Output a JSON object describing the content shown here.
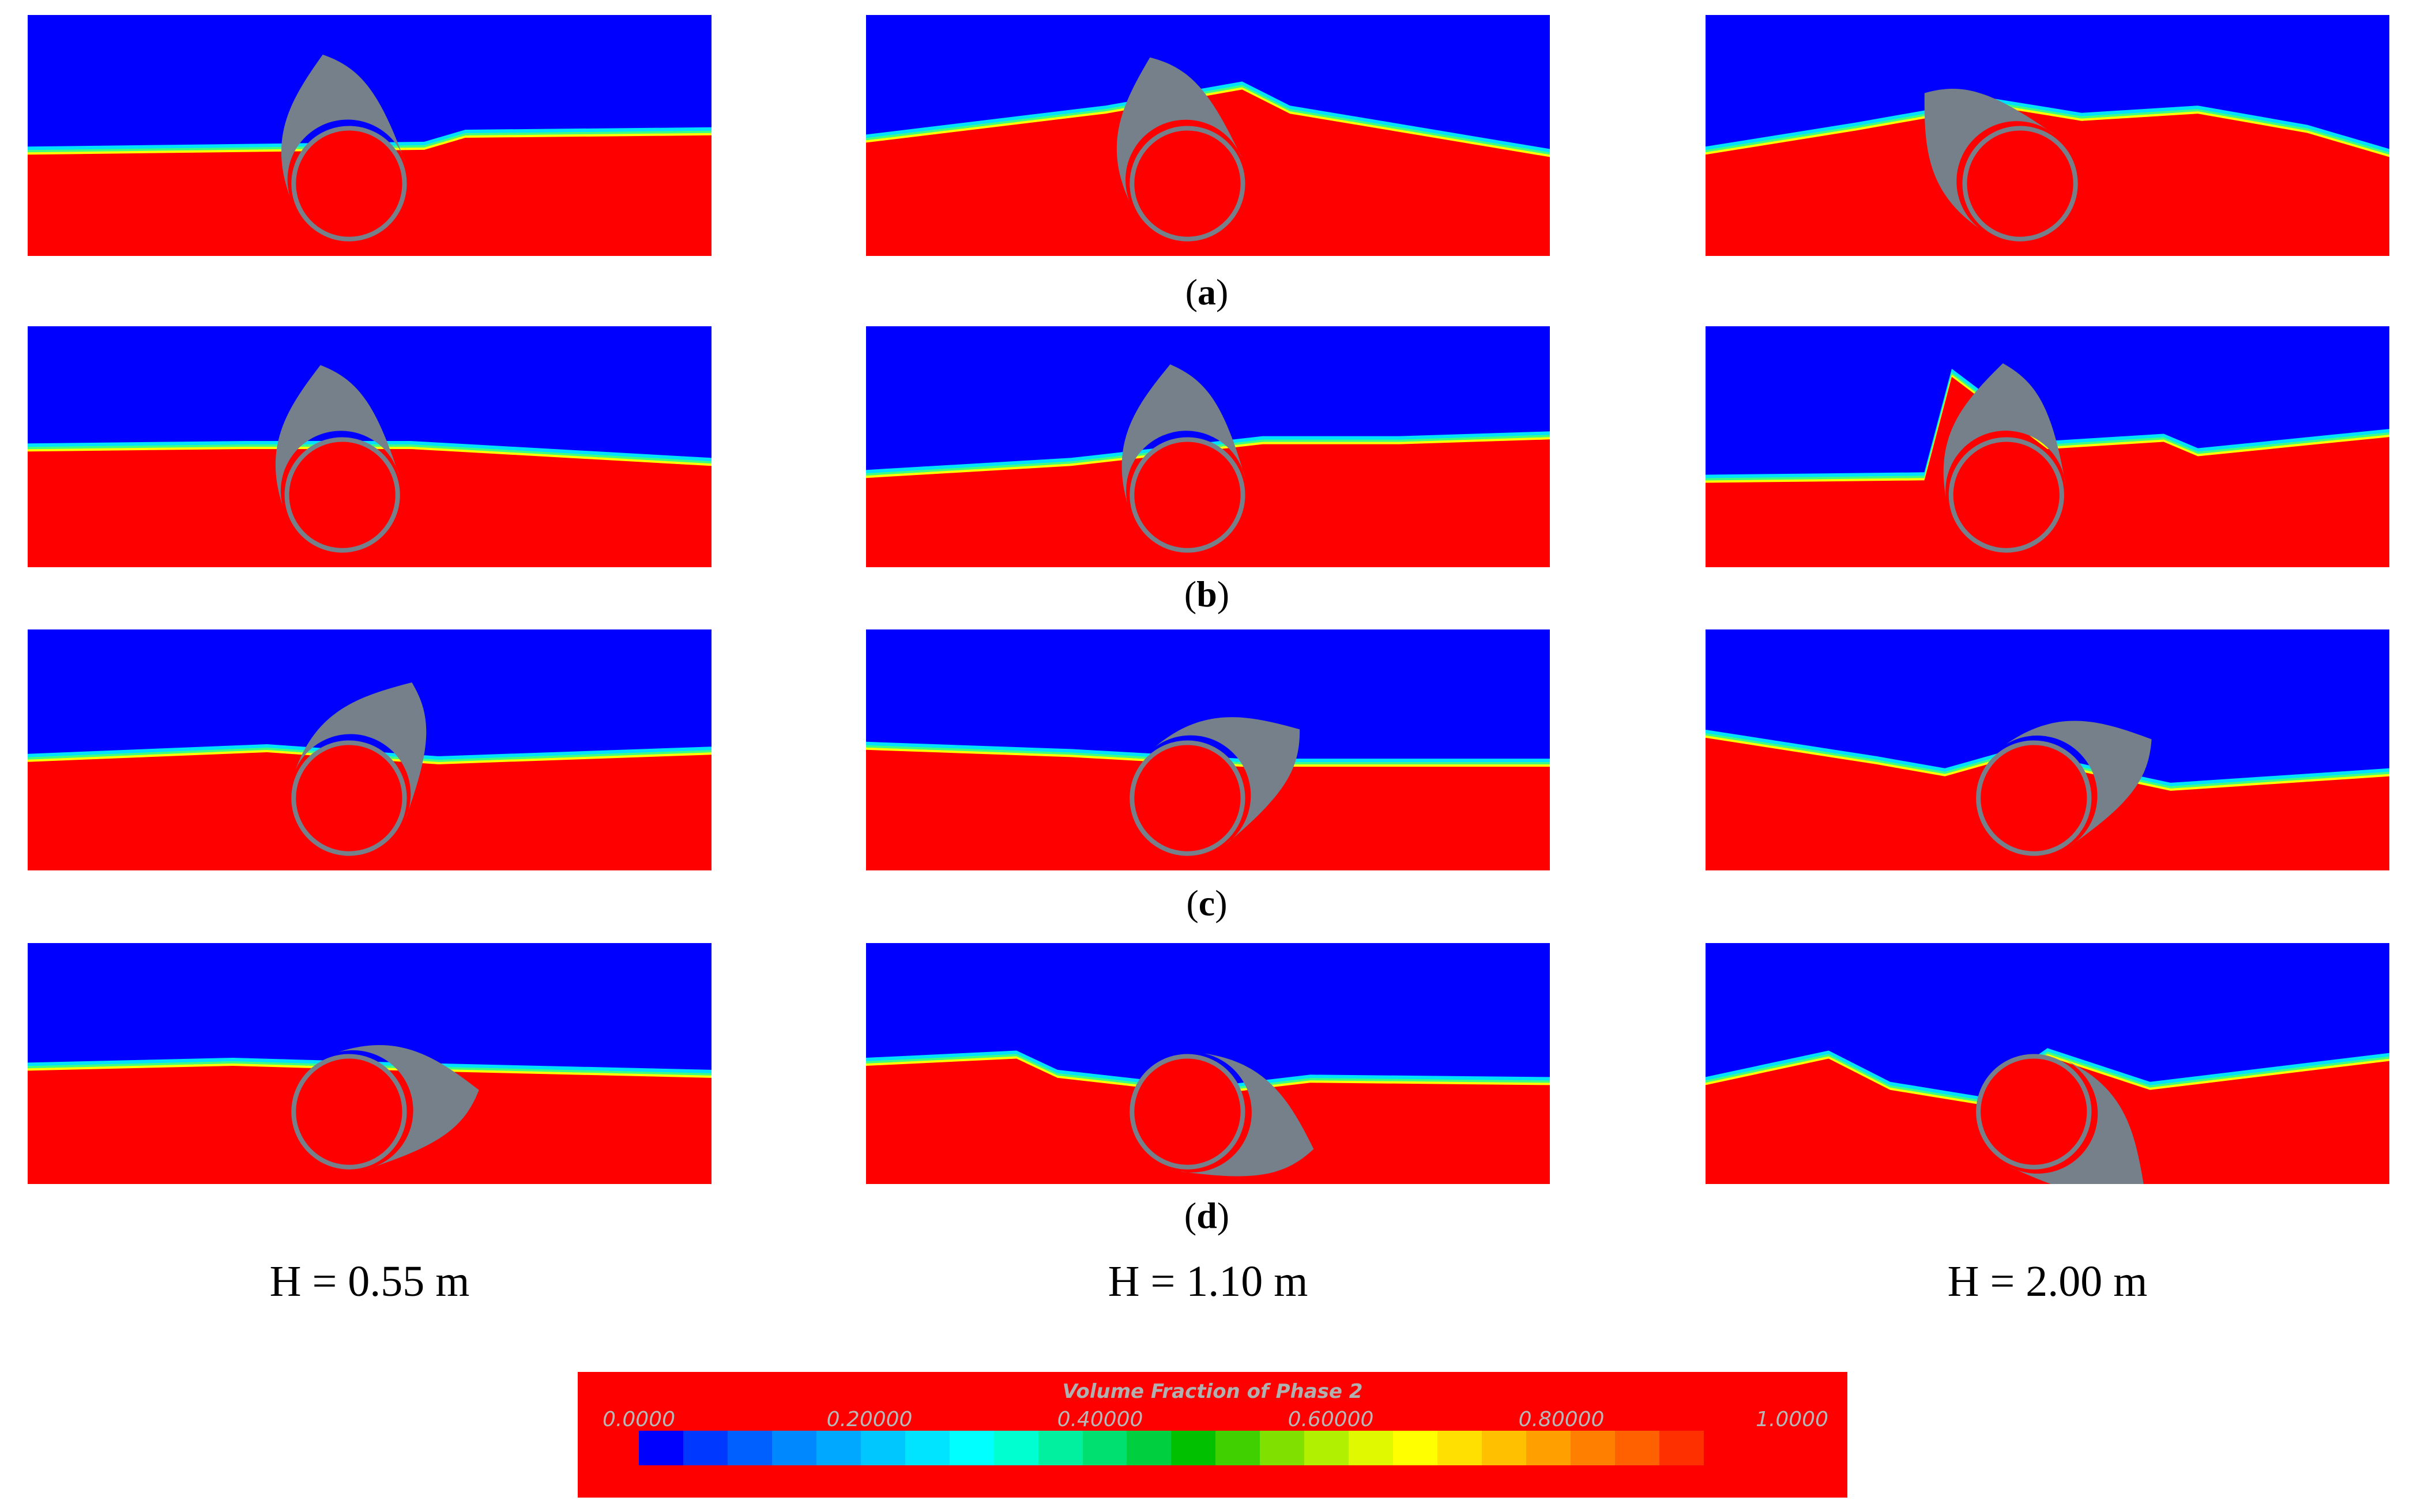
{
  "figure": {
    "panels_per_row": 3,
    "row_labels": [
      {
        "open": "(",
        "letter": "a",
        "close": ")"
      },
      {
        "open": "(",
        "letter": "b",
        "close": ")"
      },
      {
        "open": "(",
        "letter": "c",
        "close": ")"
      },
      {
        "open": "(",
        "letter": "d",
        "close": ")"
      }
    ],
    "column_labels": [
      "H = 0.55 m",
      "H = 1.10 m",
      "H = 2.00 m"
    ]
  },
  "colors": {
    "air": "#0000ff",
    "water": "#ff0000",
    "structure": "#75808b",
    "background": "#ffffff"
  },
  "colorbar": {
    "title": "Volume Fraction of Phase 2",
    "tick_labels": [
      "0.0000",
      "0.20000",
      "0.40000",
      "0.60000",
      "0.80000",
      "1.0000"
    ],
    "range": [
      0,
      1
    ],
    "swatch_colors": [
      "#0000ff",
      "#0038ff",
      "#0060ff",
      "#0088ff",
      "#00a8ff",
      "#00c8ff",
      "#00e4ff",
      "#00ffff",
      "#00ffd0",
      "#00f0a0",
      "#00e070",
      "#00d040",
      "#00c000",
      "#40d000",
      "#80e000",
      "#b0f000",
      "#e0f800",
      "#ffff00",
      "#ffe000",
      "#ffc000",
      "#ffa000",
      "#ff8000",
      "#ff6000",
      "#ff3000",
      "#ff0000"
    ]
  }
}
